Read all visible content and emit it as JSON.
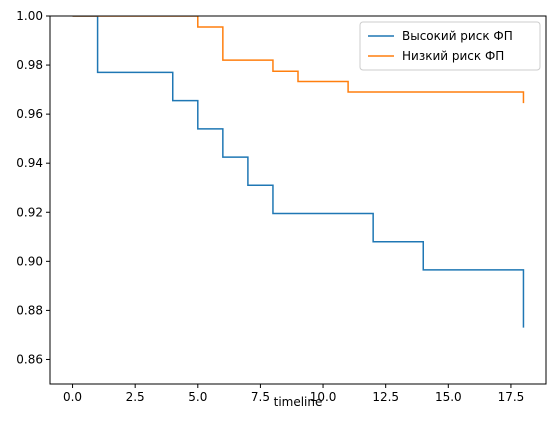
{
  "chart_data": {
    "type": "line",
    "step": true,
    "title": "",
    "xlabel": "timeline",
    "ylabel": "",
    "xlim": [
      -0.9,
      18.9
    ],
    "ylim": [
      0.85,
      1.0
    ],
    "x_ticks": [
      0.0,
      2.5,
      5.0,
      7.5,
      10.0,
      12.5,
      15.0,
      17.5
    ],
    "x_tick_labels": [
      "0.0",
      "2.5",
      "5.0",
      "7.5",
      "10.0",
      "12.5",
      "15.0",
      "17.5"
    ],
    "y_ticks": [
      0.86,
      0.88,
      0.9,
      0.92,
      0.94,
      0.96,
      0.98,
      1.0
    ],
    "y_tick_labels": [
      "0.86",
      "0.88",
      "0.90",
      "0.92",
      "0.94",
      "0.96",
      "0.98",
      "1.00"
    ],
    "grid": false,
    "legend_position": "top-right",
    "series": [
      {
        "name": "Высокий риск ФП",
        "color": "#1f77b4",
        "x": [
          0,
          1,
          4,
          5,
          6,
          7,
          8,
          12,
          14,
          18
        ],
        "y": [
          1.0,
          0.977,
          0.9655,
          0.954,
          0.9425,
          0.931,
          0.9195,
          0.908,
          0.8965,
          0.873
        ]
      },
      {
        "name": "Низкий риск ФП",
        "color": "#ff7f0e",
        "x": [
          0,
          5,
          6,
          8,
          9,
          11,
          18
        ],
        "y": [
          1.0,
          0.9955,
          0.982,
          0.9775,
          0.9733,
          0.969,
          0.9645
        ]
      }
    ]
  }
}
